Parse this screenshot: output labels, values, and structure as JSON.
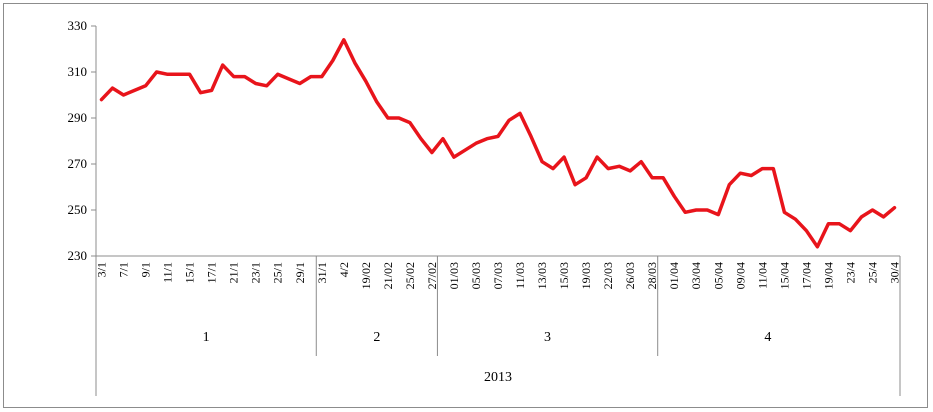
{
  "chart_data": {
    "type": "line",
    "title": "",
    "xlabel": "",
    "ylabel": "",
    "ylim": [
      230,
      330
    ],
    "yticks": [
      230,
      250,
      270,
      290,
      310,
      330
    ],
    "grid": false,
    "legend": "none",
    "colors": {
      "line": "#e8141b",
      "axis": "#8c8c8c"
    },
    "year_label": "2013",
    "groups": [
      {
        "label": "1",
        "start": 0,
        "count": 20
      },
      {
        "label": "2",
        "start": 20,
        "count": 11
      },
      {
        "label": "3",
        "start": 31,
        "count": 20
      },
      {
        "label": "4",
        "start": 51,
        "count": 20
      }
    ],
    "categories": [
      "3/1",
      "",
      "7/1",
      "",
      "9/1",
      "",
      "11/1",
      "",
      "15/1",
      "",
      "17/1",
      "",
      "21/1",
      "",
      "23/1",
      "",
      "25/1",
      "",
      "29/1",
      "",
      "31/1",
      "",
      "4/2",
      "",
      "19/02",
      "",
      "21/02",
      "",
      "25/02",
      "",
      "27/02",
      "",
      "01/03",
      "",
      "05/03",
      "",
      "07/03",
      "",
      "11/03",
      "",
      "13/03",
      "",
      "15/03",
      "",
      "19/03",
      "",
      "22/03",
      "",
      "26/03",
      "",
      "28/03",
      "",
      "01/04",
      "",
      "03/04",
      "",
      "05/04",
      "",
      "09/04",
      "",
      "11/04",
      "",
      "15/04",
      "",
      "17/04",
      "",
      "19/04",
      "",
      "23/4",
      "",
      "25/4",
      "",
      "30/4"
    ],
    "values": [
      298,
      303,
      300,
      302,
      304,
      310,
      309,
      309,
      309,
      301,
      302,
      313,
      308,
      308,
      305,
      304,
      309,
      307,
      305,
      308,
      308,
      315,
      324,
      314,
      306,
      297,
      290,
      290,
      288,
      281,
      275,
      281,
      273,
      276,
      279,
      281,
      282,
      289,
      292,
      282,
      271,
      268,
      273,
      261,
      264,
      273,
      268,
      269,
      267,
      271,
      264,
      264,
      256,
      249,
      250,
      250,
      248,
      261,
      266,
      265,
      268,
      268,
      249,
      246,
      241,
      234,
      244,
      244,
      241,
      247,
      250,
      247,
      251
    ]
  }
}
